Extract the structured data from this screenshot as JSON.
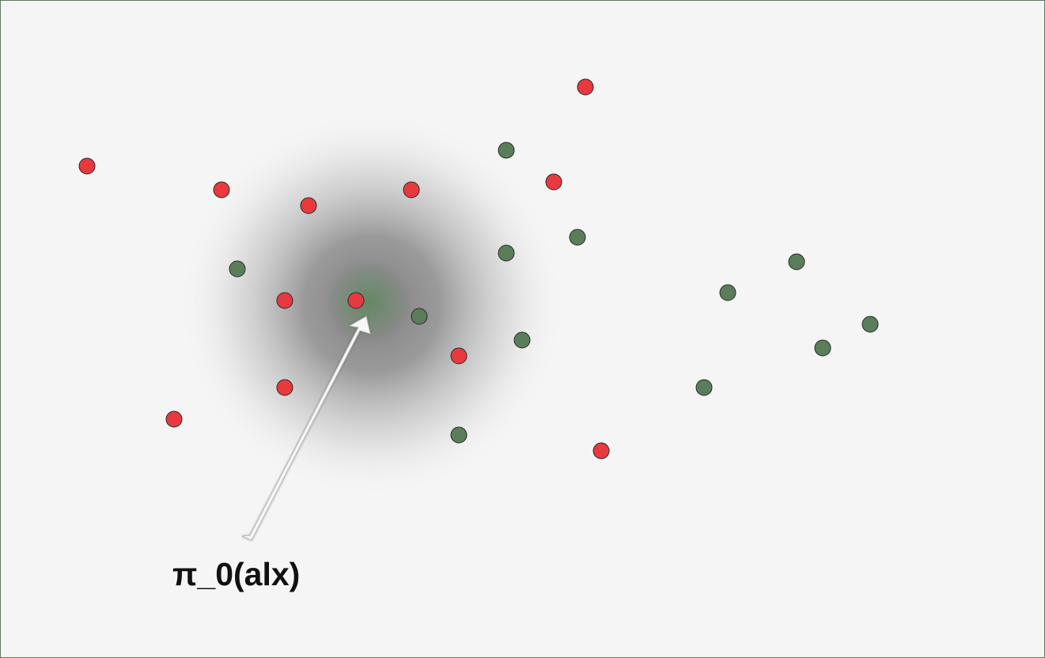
{
  "diagram": {
    "policy_label": "π_0(alx)",
    "colors": {
      "background": "#f5f5f5",
      "red_point": "#e8393e",
      "green_point": "#5a7d5a",
      "point_outline": "#2a2a2a",
      "glow_center": "#5f8a5f",
      "arrow": "#ffffff"
    },
    "points": [
      {
        "color": "red"
      },
      {
        "color": "red"
      },
      {
        "color": "red"
      },
      {
        "color": "red"
      },
      {
        "color": "red"
      },
      {
        "color": "red"
      },
      {
        "color": "red"
      },
      {
        "color": "red"
      },
      {
        "color": "red"
      },
      {
        "color": "red"
      },
      {
        "color": "red"
      },
      {
        "color": "red"
      },
      {
        "color": "green"
      },
      {
        "color": "green"
      },
      {
        "color": "green"
      },
      {
        "color": "green"
      },
      {
        "color": "green"
      },
      {
        "color": "green"
      },
      {
        "color": "green"
      },
      {
        "color": "green"
      },
      {
        "color": "green"
      },
      {
        "color": "green"
      },
      {
        "color": "green"
      },
      {
        "color": "green"
      }
    ]
  }
}
